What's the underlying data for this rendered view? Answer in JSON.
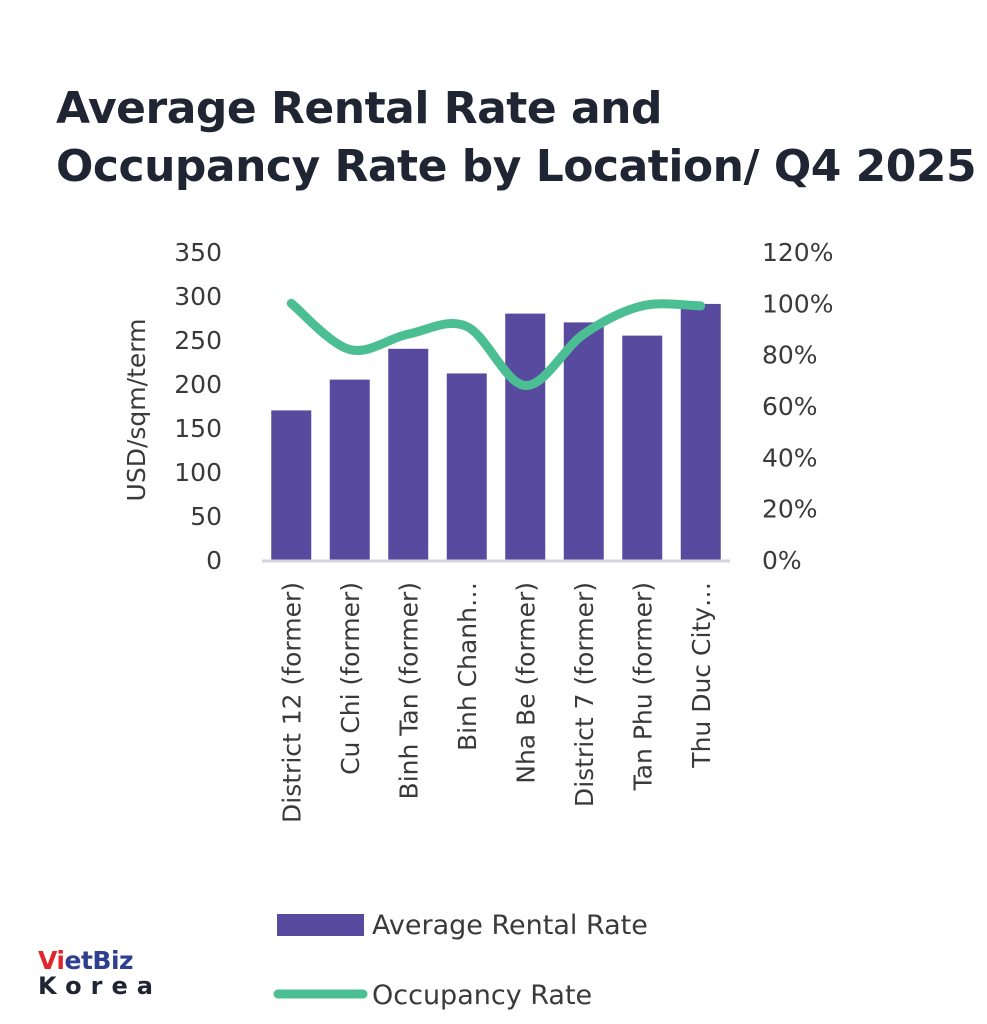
{
  "title": {
    "line1": "Average Rental Rate and",
    "line2": "Occupancy Rate by Location/ Q4 2025"
  },
  "chart_data": {
    "type": "bar",
    "title": "Average Rental Rate and Occupancy Rate by Location/ Q4 2025",
    "categories": [
      "District 12 (former)",
      "Cu Chi (former)",
      "Binh Tan (former)",
      "Binh Chanh…",
      "Nha Be (former)",
      "District 7 (former)",
      "Tan Phu (former)",
      "Thu Duc City…"
    ],
    "series": [
      {
        "name": "Average Rental Rate",
        "type": "bar",
        "axis": "left",
        "color": "#584a9e",
        "values": [
          170,
          205,
          240,
          212,
          280,
          270,
          255,
          291
        ]
      },
      {
        "name": "Occupancy Rate",
        "type": "line",
        "axis": "right",
        "color": "#4cbe94",
        "values": [
          1.0,
          0.82,
          0.88,
          0.91,
          0.68,
          0.88,
          0.99,
          0.99
        ]
      }
    ],
    "ylabel": "USD/sqm/term",
    "ylim": [
      0,
      350
    ],
    "yticks": [
      "0",
      "50",
      "100",
      "150",
      "200",
      "250",
      "300",
      "350"
    ],
    "y2lim": [
      0,
      1.2
    ],
    "y2ticks": [
      "0%",
      "20%",
      "40%",
      "60%",
      "80%",
      "100%",
      "120%"
    ],
    "grid": false,
    "legend_position": "bottom"
  },
  "logo": {
    "line1_a": "Vi",
    "line1_b": "etBiz",
    "line2": "Korea"
  }
}
